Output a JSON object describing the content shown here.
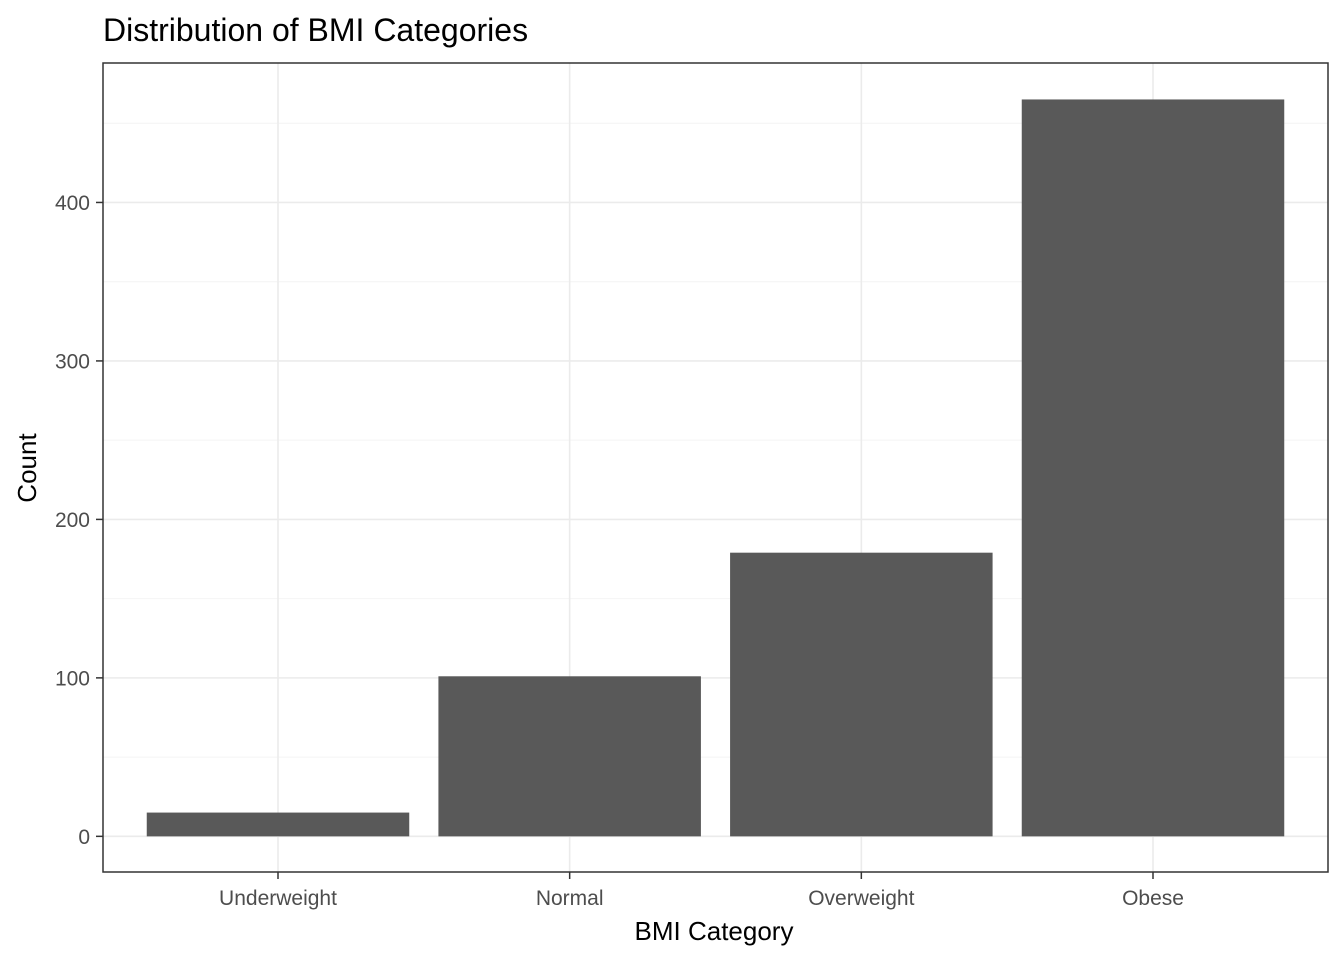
{
  "chart_data": {
    "type": "bar",
    "title": "Distribution of BMI Categories",
    "xlabel": "BMI Category",
    "ylabel": "Count",
    "categories": [
      "Underweight",
      "Normal",
      "Overweight",
      "Obese"
    ],
    "values": [
      15,
      101,
      179,
      465
    ],
    "ylim": [
      -22.5,
      488
    ],
    "yticks": [
      0,
      100,
      200,
      300,
      400
    ],
    "yticks_labels": [
      "0",
      "100",
      "200",
      "300",
      "400"
    ],
    "grid": true,
    "legend": "none",
    "colors": {
      "bar": "#595959",
      "grid_major": "#ebebeb",
      "grid_minor": "#f4f4f4",
      "panel_border": "#333333",
      "tick_text": "#4d4d4d"
    }
  }
}
